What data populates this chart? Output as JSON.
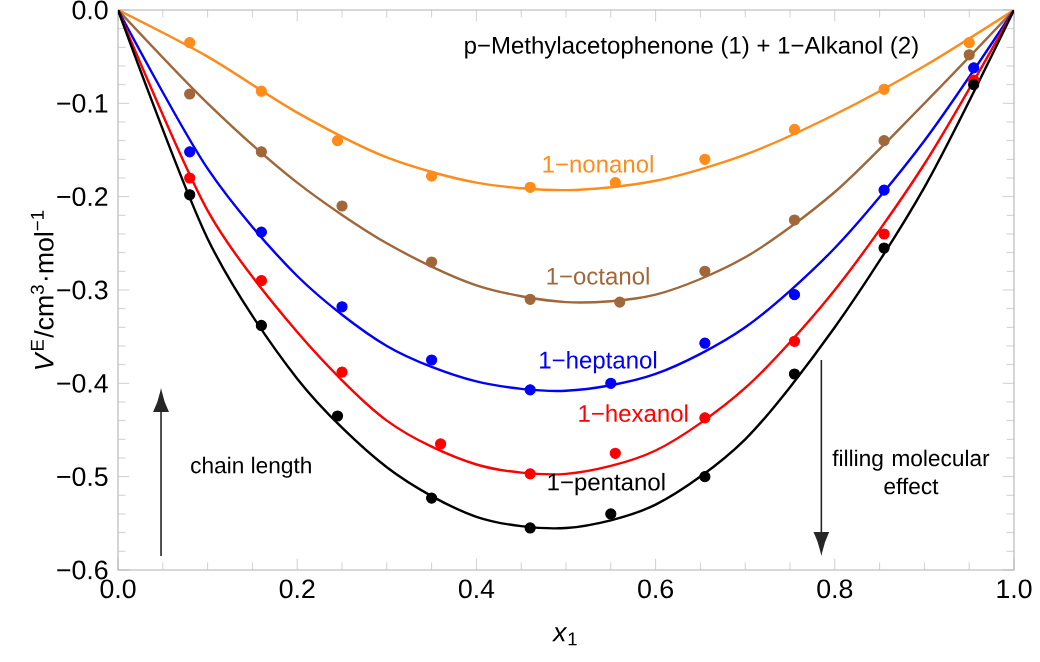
{
  "chart_data": {
    "type": "scatter",
    "title": "p−Methylacetophenone (1) + 1−Alkanol (2)",
    "xlabel": "*x*$_{1}$",
    "ylabel": "*V*$^{E}$/cm$^{3}$·mol$^{−1}$",
    "xlim": [
      0,
      1
    ],
    "ylim": [
      -0.6,
      0
    ],
    "xticks": [
      {
        "value": 0,
        "label": "0.0"
      },
      {
        "value": 0.2,
        "label": "0.2"
      },
      {
        "value": 0.4,
        "label": "0.4"
      },
      {
        "value": 0.6,
        "label": "0.6"
      },
      {
        "value": 0.8,
        "label": "0.8"
      },
      {
        "value": 1,
        "label": "1.0"
      }
    ],
    "yticks": [
      {
        "value": -0.6,
        "label": "−0.6"
      },
      {
        "value": -0.5,
        "label": "−0.5"
      },
      {
        "value": -0.4,
        "label": "−0.4"
      },
      {
        "value": -0.3,
        "label": "−0.3"
      },
      {
        "value": -0.2,
        "label": "−0.2"
      },
      {
        "value": -0.1,
        "label": "−0.1"
      },
      {
        "value": 0,
        "label": "0.0"
      }
    ],
    "marker": "circle",
    "annotations": [
      "chain length",
      "filling molecular effect"
    ],
    "series": [
      {
        "color": "#ff8c1a",
        "x": [
          0.08,
          0.16,
          0.245,
          0.35,
          0.46,
          0.555,
          0.655,
          0.755,
          0.855,
          0.95
        ],
        "values": [
          -0.035,
          -0.087,
          -0.14,
          -0.178,
          -0.19,
          -0.185,
          -0.16,
          -0.128,
          -0.085,
          -0.035
        ]
      },
      {
        "color": "#a0673a",
        "x": [
          0.08,
          0.16,
          0.25,
          0.35,
          0.46,
          0.56,
          0.655,
          0.755,
          0.855,
          0.95
        ],
        "values": [
          -0.09,
          -0.152,
          -0.21,
          -0.27,
          -0.31,
          -0.313,
          -0.28,
          -0.225,
          -0.14,
          -0.048
        ]
      },
      {
        "color": "#0000ff",
        "x": [
          0.08,
          0.16,
          0.25,
          0.35,
          0.46,
          0.55,
          0.655,
          0.755,
          0.855,
          0.955
        ],
        "values": [
          -0.152,
          -0.238,
          -0.318,
          -0.375,
          -0.407,
          -0.4,
          -0.357,
          -0.305,
          -0.193,
          -0.062
        ]
      },
      {
        "color": "#ff0000",
        "x": [
          0.08,
          0.16,
          0.25,
          0.36,
          0.46,
          0.555,
          0.655,
          0.755,
          0.855,
          0.955
        ],
        "values": [
          -0.18,
          -0.29,
          -0.388,
          -0.465,
          -0.497,
          -0.475,
          -0.437,
          -0.355,
          -0.24,
          -0.075
        ]
      },
      {
        "color": "#000000",
        "x": [
          0.08,
          0.16,
          0.245,
          0.35,
          0.46,
          0.55,
          0.655,
          0.755,
          0.855,
          0.955
        ],
        "values": [
          -0.198,
          -0.338,
          -0.435,
          -0.523,
          -0.555,
          -0.54,
          -0.5,
          -0.39,
          -0.255,
          -0.08
        ]
      },
      {
        "type": "line",
        "marker": "none",
        "name": "1−nonanol",
        "color": "#ff8c1a",
        "x": [
          0,
          0.1,
          0.2,
          0.3,
          0.4,
          0.5,
          0.6,
          0.7,
          0.8,
          0.9,
          1
        ],
        "values": [
          0,
          -0.05,
          -0.11,
          -0.158,
          -0.185,
          -0.193,
          -0.183,
          -0.155,
          -0.112,
          -0.06,
          0
        ]
      },
      {
        "type": "line",
        "marker": "none",
        "name": "1−octanol",
        "color": "#a0673a",
        "x": [
          0,
          0.1,
          0.2,
          0.3,
          0.4,
          0.5,
          0.6,
          0.7,
          0.8,
          0.9,
          1
        ],
        "values": [
          0,
          -0.1,
          -0.185,
          -0.25,
          -0.295,
          -0.313,
          -0.305,
          -0.265,
          -0.195,
          -0.1,
          0
        ]
      },
      {
        "type": "line",
        "marker": "none",
        "name": "1−heptanol",
        "color": "#0000ff",
        "x": [
          0,
          0.1,
          0.2,
          0.3,
          0.4,
          0.5,
          0.6,
          0.7,
          0.8,
          0.9,
          1
        ],
        "values": [
          0,
          -0.17,
          -0.285,
          -0.36,
          -0.398,
          -0.408,
          -0.39,
          -0.34,
          -0.255,
          -0.14,
          0
        ]
      },
      {
        "type": "line",
        "marker": "none",
        "name": "1−hexanol",
        "color": "#ff0000",
        "x": [
          0,
          0.1,
          0.2,
          0.3,
          0.4,
          0.5,
          0.6,
          0.7,
          0.8,
          0.9,
          1
        ],
        "values": [
          0,
          -0.215,
          -0.345,
          -0.44,
          -0.487,
          -0.497,
          -0.472,
          -0.405,
          -0.3,
          -0.165,
          0
        ]
      },
      {
        "type": "line",
        "marker": "none",
        "name": "1−pentanol",
        "color": "#000000",
        "x": [
          0,
          0.1,
          0.2,
          0.3,
          0.4,
          0.5,
          0.6,
          0.7,
          0.8,
          0.9,
          1
        ],
        "values": [
          0,
          -0.245,
          -0.395,
          -0.49,
          -0.543,
          -0.555,
          -0.53,
          -0.46,
          -0.34,
          -0.19,
          0
        ]
      }
    ]
  }
}
